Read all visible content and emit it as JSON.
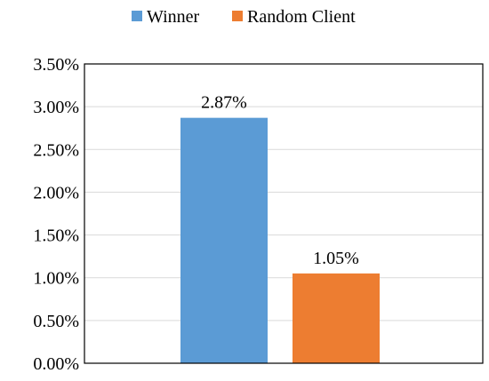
{
  "chart_data": {
    "type": "bar",
    "categories": [
      ""
    ],
    "series": [
      {
        "name": "Winner",
        "values": [
          2.87
        ],
        "color": "#5b9bd5"
      },
      {
        "name": "Random Client",
        "values": [
          1.05
        ],
        "color": "#ed7d31"
      }
    ],
    "value_labels": [
      "2.87%",
      "1.05%"
    ],
    "yticks": [
      "0.00%",
      "0.50%",
      "1.00%",
      "1.50%",
      "2.00%",
      "2.50%",
      "3.00%",
      "3.50%"
    ],
    "ylim": [
      0,
      3.5
    ],
    "unit": "%",
    "grid": true,
    "legend_position": "top",
    "xlabel": "",
    "ylabel": "",
    "title": ""
  }
}
